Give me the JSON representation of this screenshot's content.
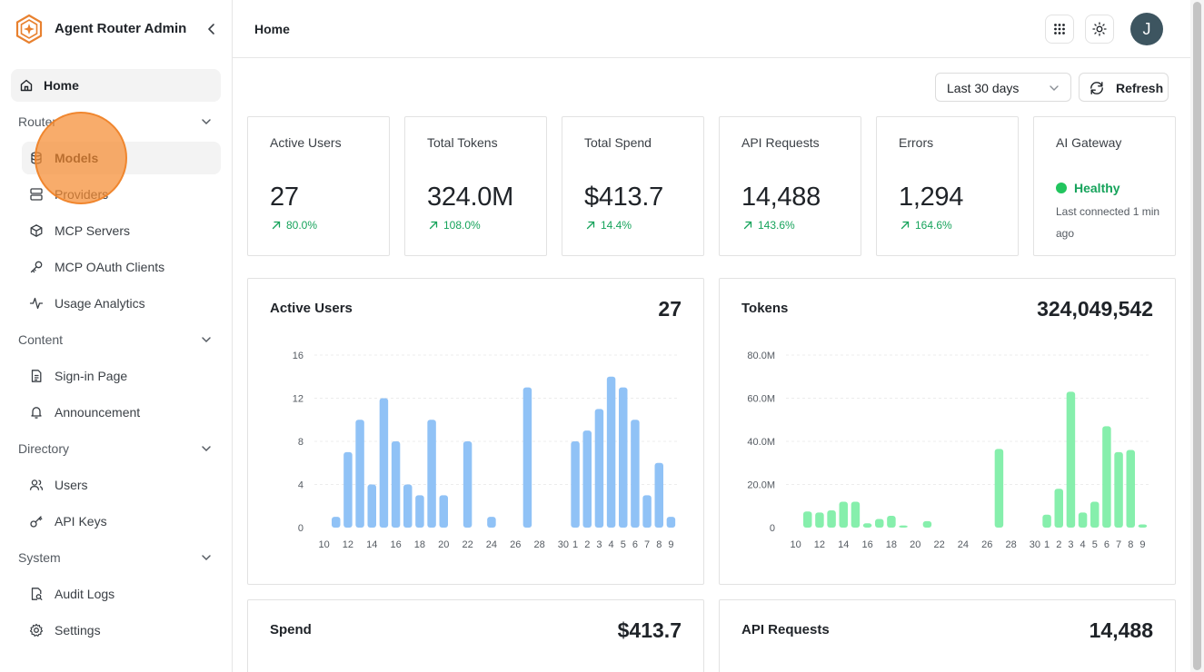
{
  "app": {
    "title": "Agent Router Admin"
  },
  "colors": {
    "accent": "#e8812f",
    "positive": "#16a35b",
    "users_bar": "#90c2f6",
    "tokens_bar": "#86efac"
  },
  "nav": {
    "home": "Home",
    "groups": [
      {
        "label": "Router",
        "items": [
          {
            "label": "Models",
            "icon": "database-icon"
          },
          {
            "label": "Providers",
            "icon": "server-icon"
          },
          {
            "label": "MCP Servers",
            "icon": "box-icon"
          },
          {
            "label": "MCP OAuth Clients",
            "icon": "key-icon"
          },
          {
            "label": "Usage Analytics",
            "icon": "activity-icon"
          }
        ]
      },
      {
        "label": "Content",
        "items": [
          {
            "label": "Sign-in Page",
            "icon": "file-text-icon"
          },
          {
            "label": "Announcement",
            "icon": "bell-icon"
          }
        ]
      },
      {
        "label": "Directory",
        "items": [
          {
            "label": "Users",
            "icon": "users-icon"
          },
          {
            "label": "API Keys",
            "icon": "key-round-icon"
          }
        ]
      },
      {
        "label": "System",
        "items": [
          {
            "label": "Audit Logs",
            "icon": "file-search-icon"
          },
          {
            "label": "Settings",
            "icon": "gear-icon"
          }
        ]
      }
    ]
  },
  "header": {
    "breadcrumb": "Home",
    "avatar_initial": "J"
  },
  "toolbar": {
    "range": "Last 30 days",
    "refresh": "Refresh"
  },
  "stats": [
    {
      "title": "Active Users",
      "value": "27",
      "delta": "80.0%"
    },
    {
      "title": "Total Tokens",
      "value": "324.0M",
      "delta": "108.0%"
    },
    {
      "title": "Total Spend",
      "value": "$413.7",
      "delta": "14.4%"
    },
    {
      "title": "API Requests",
      "value": "14,488",
      "delta": "143.6%"
    },
    {
      "title": "Errors",
      "value": "1,294",
      "delta": "164.6%"
    }
  ],
  "gateway": {
    "title": "AI Gateway",
    "status": "Healthy",
    "subtext": "Last connected 1 min ago"
  },
  "cards": {
    "spend": {
      "title": "Spend",
      "value": "$413.7"
    },
    "api_requests": {
      "title": "API Requests",
      "value": "14,488"
    }
  },
  "chart_data": [
    {
      "type": "bar",
      "title": "Active Users",
      "total": "27",
      "ylim": [
        0,
        16
      ],
      "yticks": [
        "0",
        "4",
        "8",
        "12",
        "16"
      ],
      "xtick_labels": [
        "10",
        "12",
        "14",
        "16",
        "18",
        "20",
        "22",
        "24",
        "26",
        "28",
        "30",
        "1",
        "2",
        "3",
        "4",
        "5",
        "6",
        "7",
        "8",
        "9"
      ],
      "categories": [
        "10",
        "11",
        "12",
        "13",
        "14",
        "15",
        "16",
        "17",
        "18",
        "19",
        "20",
        "21",
        "22",
        "23",
        "24",
        "25",
        "26",
        "27",
        "28",
        "29",
        "30",
        "1",
        "2",
        "3",
        "4",
        "5",
        "6",
        "7",
        "8",
        "9"
      ],
      "values": [
        0,
        1,
        7,
        10,
        4,
        12,
        8,
        4,
        3,
        10,
        3,
        0,
        8,
        0,
        1,
        0,
        0,
        13,
        0,
        0,
        0,
        8,
        9,
        11,
        14,
        13,
        10,
        3,
        6,
        1
      ],
      "grid": true
    },
    {
      "type": "bar",
      "title": "Tokens",
      "total": "324,049,542",
      "ylim": [
        0,
        80
      ],
      "yticks": [
        "0",
        "20.0M",
        "40.0M",
        "60.0M",
        "80.0M"
      ],
      "xtick_labels": [
        "10",
        "12",
        "14",
        "16",
        "18",
        "20",
        "22",
        "24",
        "26",
        "28",
        "30",
        "1",
        "2",
        "3",
        "4",
        "5",
        "6",
        "7",
        "8",
        "9"
      ],
      "categories": [
        "10",
        "11",
        "12",
        "13",
        "14",
        "15",
        "16",
        "17",
        "18",
        "19",
        "20",
        "21",
        "22",
        "23",
        "24",
        "25",
        "26",
        "27",
        "28",
        "29",
        "30",
        "1",
        "2",
        "3",
        "4",
        "5",
        "6",
        "7",
        "8",
        "9"
      ],
      "values": [
        0,
        7.5,
        7,
        8,
        12,
        12,
        2,
        4,
        5.5,
        1,
        0,
        3,
        0,
        0,
        0,
        0,
        0,
        36.5,
        0,
        0,
        0,
        6,
        18,
        63,
        7,
        12,
        47,
        35,
        36,
        1.5
      ],
      "grid": true
    }
  ]
}
